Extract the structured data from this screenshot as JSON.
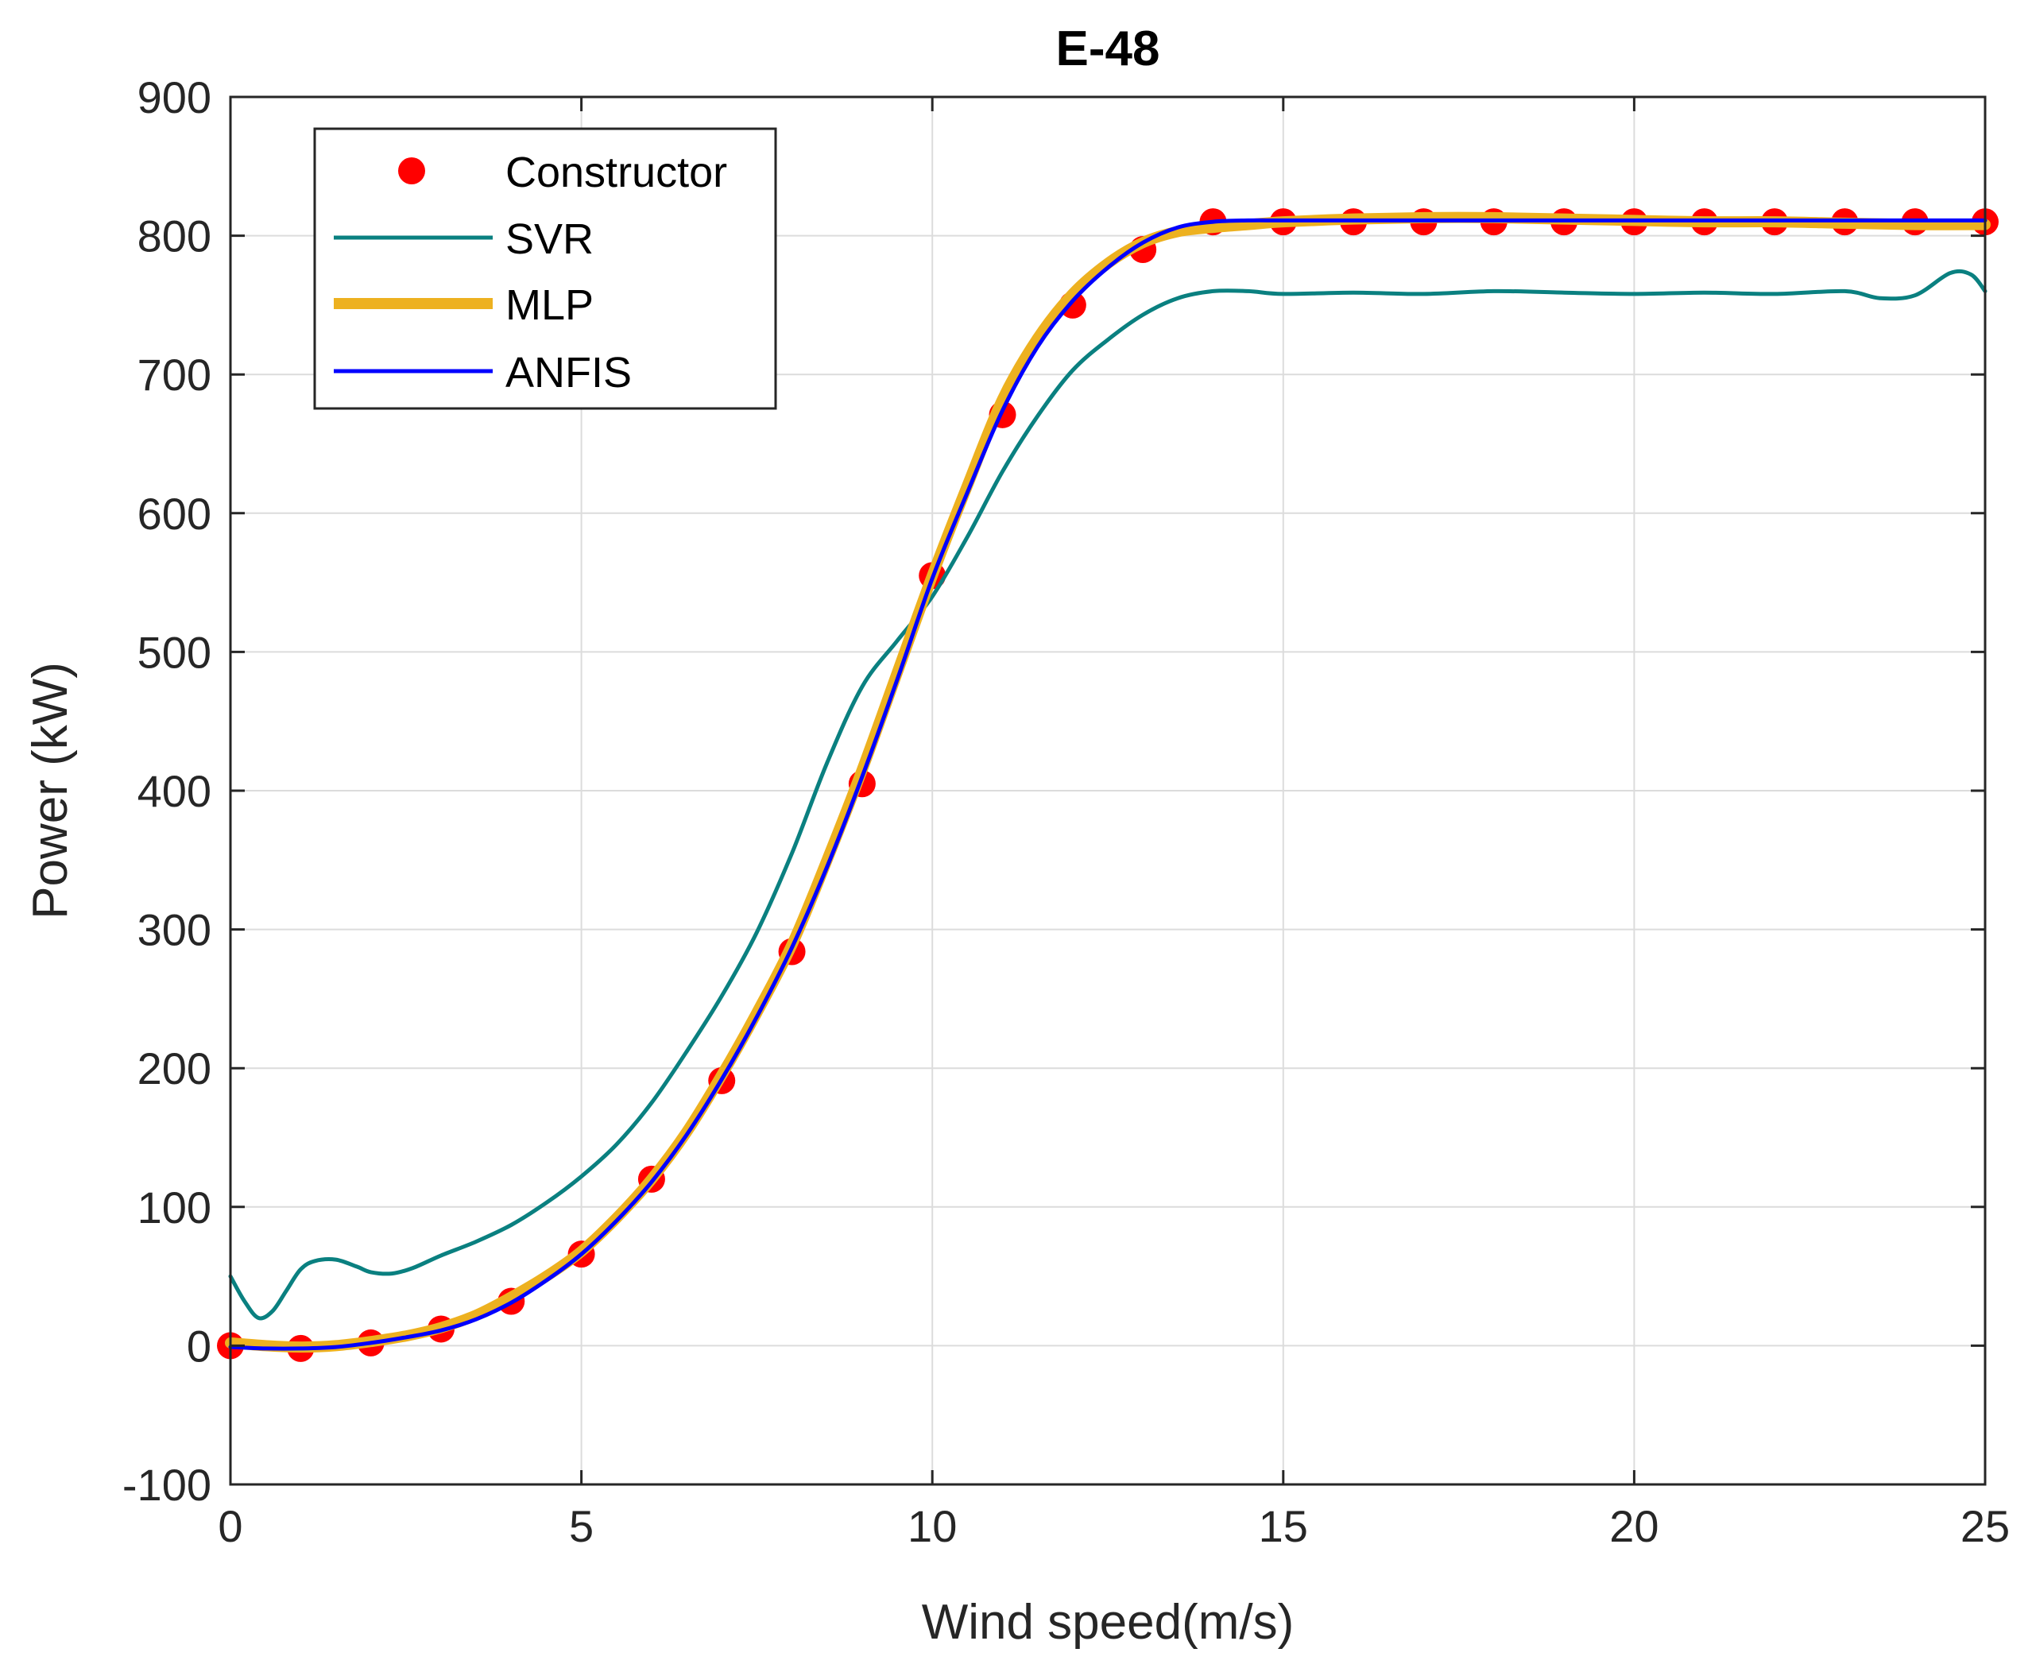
{
  "chart_data": {
    "type": "line",
    "title": "E-48",
    "xlabel": "Wind speed(m/s)",
    "ylabel": "Power (kW)",
    "xlim": [
      0,
      25
    ],
    "ylim": [
      -100,
      900
    ],
    "xticks": [
      0,
      5,
      10,
      15,
      20,
      25
    ],
    "yticks": [
      -100,
      0,
      100,
      200,
      300,
      400,
      500,
      600,
      700,
      800,
      900
    ],
    "xtick_labels": [
      "0",
      "5",
      "10",
      "15",
      "20",
      "25"
    ],
    "ytick_labels": [
      "-100",
      "0",
      "100",
      "200",
      "300",
      "400",
      "500",
      "600",
      "700",
      "800",
      "900"
    ],
    "grid": true,
    "legend_position": "top-left",
    "series": [
      {
        "name": "Constructor",
        "style": "markers",
        "color": "#ff0000",
        "x": [
          0,
          1,
          2,
          3,
          4,
          5,
          6,
          7,
          8,
          9,
          10,
          11,
          12,
          13,
          14,
          15,
          16,
          17,
          18,
          19,
          20,
          21,
          22,
          23,
          24,
          25
        ],
        "y": [
          0,
          -2,
          2,
          12,
          32,
          66,
          120,
          191,
          284,
          405,
          555,
          671,
          750,
          790,
          810,
          810,
          810,
          810,
          810,
          810,
          810,
          810,
          810,
          810,
          810,
          810
        ]
      },
      {
        "name": "SVR",
        "style": "line",
        "color": "#0a8080",
        "x": [
          0,
          0.2,
          0.4,
          0.6,
          0.8,
          1.0,
          1.2,
          1.5,
          1.8,
          2.0,
          2.3,
          2.6,
          3.0,
          3.5,
          4.0,
          4.5,
          5.0,
          5.5,
          6.0,
          6.5,
          7.0,
          7.5,
          8.0,
          8.5,
          9.0,
          9.5,
          10.0,
          10.5,
          11.0,
          11.5,
          12.0,
          12.5,
          13.0,
          13.5,
          14.0,
          14.5,
          15,
          16,
          17,
          18,
          19,
          20,
          21,
          22,
          23,
          23.5,
          24,
          24.5,
          24.8,
          25
        ],
        "y": [
          50,
          32,
          20,
          25,
          40,
          55,
          61,
          62,
          57,
          53,
          52,
          56,
          65,
          75,
          87,
          103,
          122,
          145,
          175,
          212,
          252,
          298,
          355,
          420,
          475,
          508,
          540,
          583,
          630,
          670,
          703,
          725,
          743,
          755,
          760,
          760,
          758,
          759,
          758,
          760,
          759,
          758,
          759,
          758,
          760,
          755,
          757,
          773,
          772,
          760
        ]
      },
      {
        "name": "MLP",
        "style": "line",
        "color": "#edb120",
        "x": [
          0,
          0.5,
          1,
          1.5,
          2,
          2.5,
          3,
          3.5,
          4,
          4.5,
          5,
          5.5,
          6,
          6.5,
          7,
          7.5,
          8,
          8.5,
          9,
          9.5,
          10,
          10.5,
          11,
          11.5,
          12,
          12.5,
          13,
          13.5,
          14,
          14.5,
          15,
          16,
          17,
          18,
          19,
          20,
          21,
          22,
          23,
          24,
          25
        ],
        "y": [
          2,
          0,
          -1,
          0,
          3,
          7,
          13,
          22,
          35,
          50,
          68,
          92,
          120,
          154,
          195,
          240,
          289,
          350,
          415,
          485,
          555,
          620,
          682,
          726,
          758,
          780,
          795,
          803,
          806,
          808,
          810,
          812,
          813,
          813,
          812,
          811,
          810,
          810,
          809,
          808,
          808
        ]
      },
      {
        "name": "ANFIS",
        "style": "line",
        "color": "#0000ff",
        "x": [
          0,
          0.5,
          1,
          1.5,
          2,
          2.5,
          3,
          3.5,
          4,
          4.5,
          5,
          5.5,
          6,
          6.5,
          7,
          7.5,
          8,
          8.5,
          9,
          9.5,
          10,
          10.5,
          11,
          11.5,
          12,
          12.5,
          13,
          13.5,
          14,
          14.5,
          15,
          16,
          17,
          18,
          19,
          20,
          21,
          22,
          23,
          24,
          25
        ],
        "y": [
          -1,
          -2,
          -2,
          -1,
          2,
          6,
          11,
          19,
          31,
          47,
          66,
          90,
          118,
          152,
          192,
          237,
          287,
          345,
          410,
          480,
          553,
          615,
          674,
          720,
          753,
          777,
          795,
          806,
          810,
          811,
          811,
          811,
          811,
          811,
          811,
          811,
          811,
          811,
          811,
          811,
          811
        ]
      }
    ]
  }
}
